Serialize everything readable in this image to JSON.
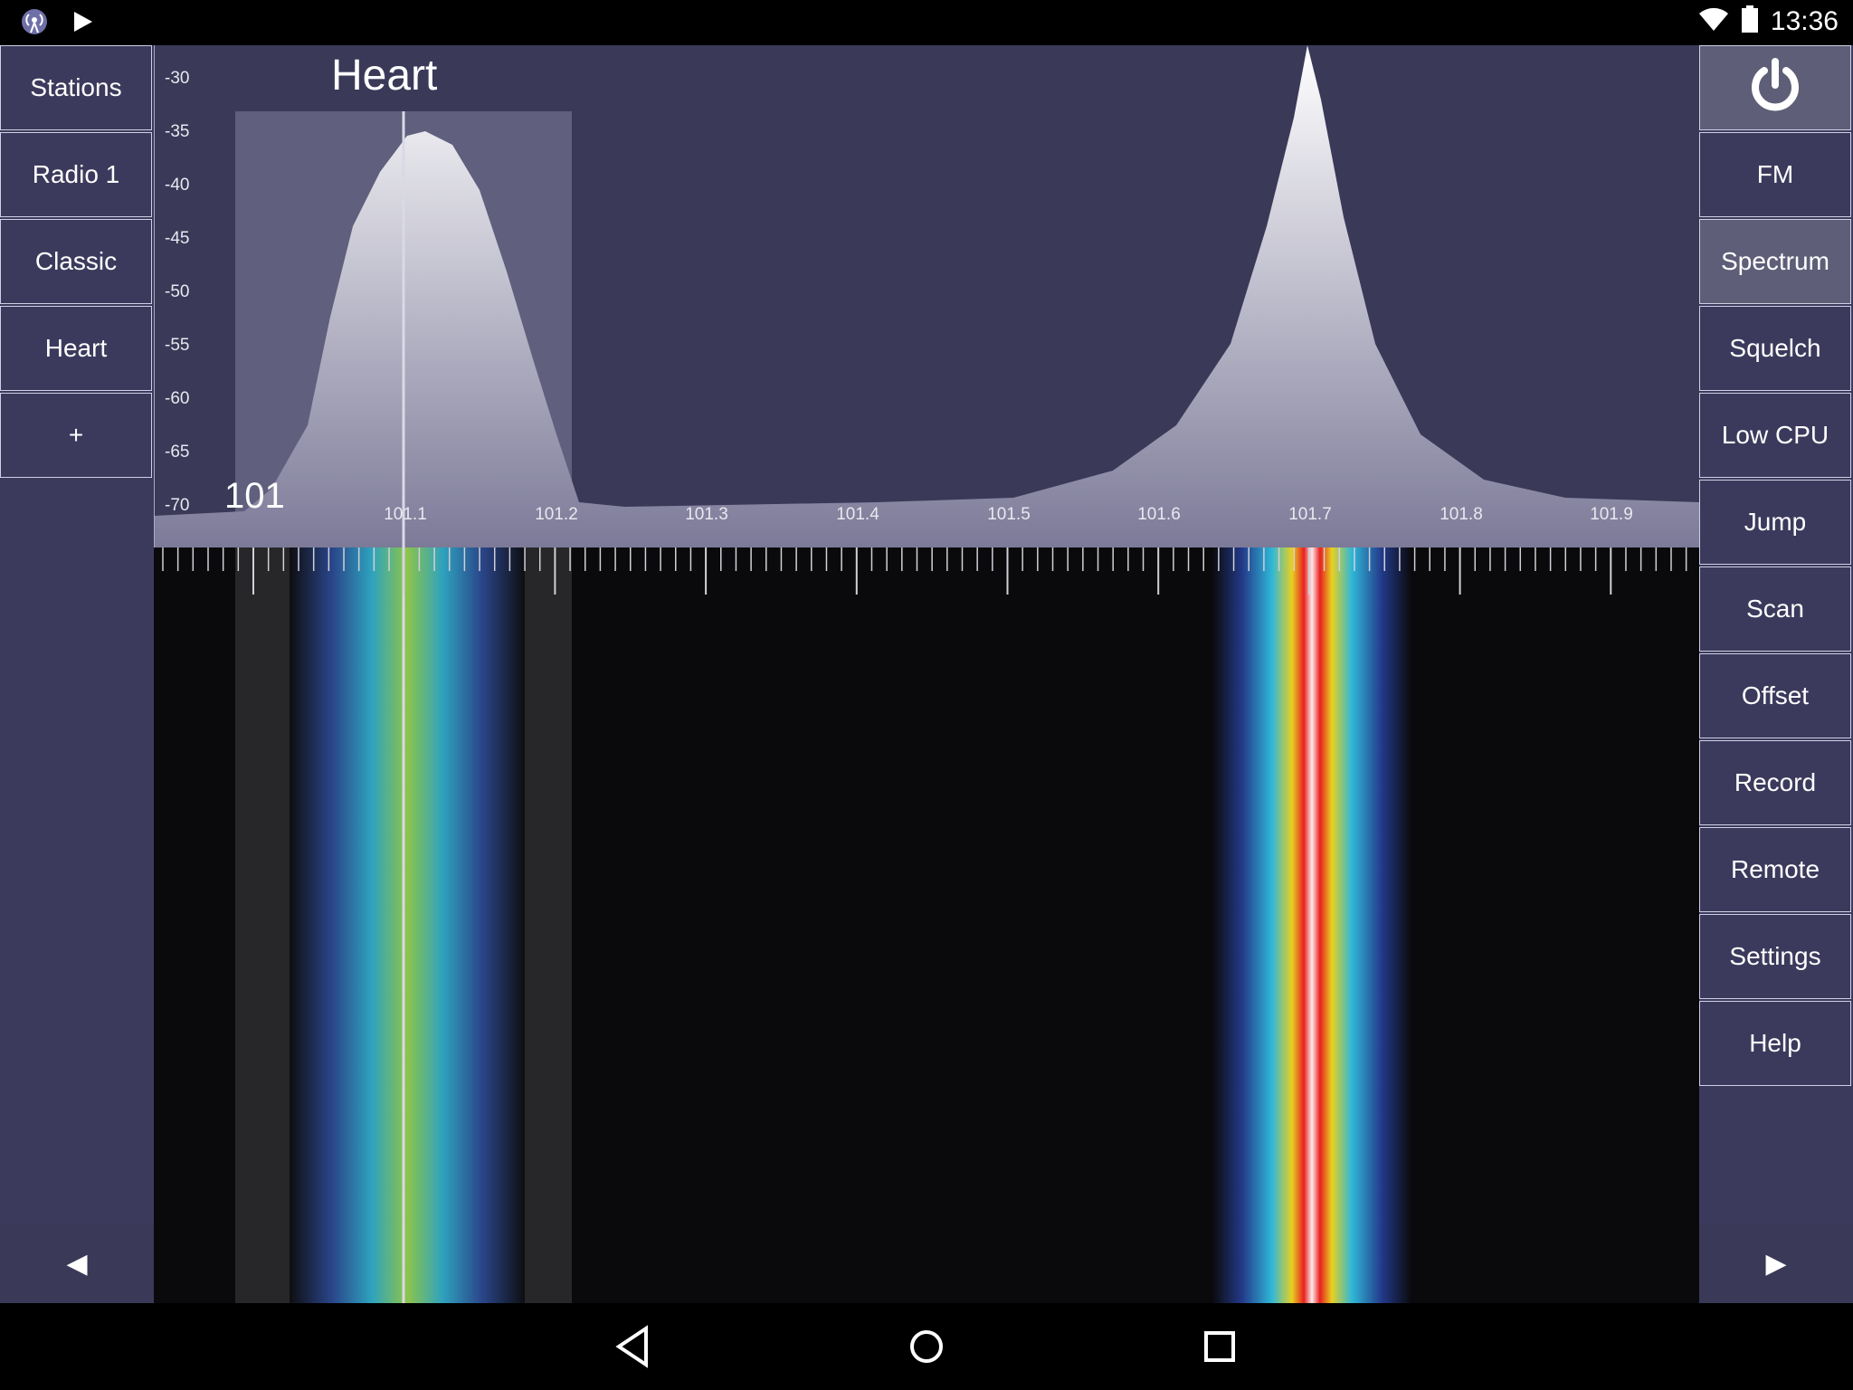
{
  "status_bar": {
    "time": "13:36",
    "left_icons": [
      "radio-app-icon",
      "play-icon"
    ],
    "right_icons": [
      "wifi-icon",
      "battery-icon"
    ]
  },
  "left_panel": {
    "items": [
      {
        "label": "Stations"
      },
      {
        "label": "Radio 1"
      },
      {
        "label": "Classic"
      },
      {
        "label": "Heart"
      },
      {
        "label": "+"
      }
    ],
    "prev_arrow": "◀"
  },
  "right_panel": {
    "power_icon": "power-icon",
    "items": [
      {
        "label": "FM"
      },
      {
        "label": "Spectrum",
        "active": true
      },
      {
        "label": "Squelch"
      },
      {
        "label": "Low CPU"
      },
      {
        "label": "Jump"
      },
      {
        "label": "Scan"
      },
      {
        "label": "Offset"
      },
      {
        "label": "Record"
      },
      {
        "label": "Remote"
      },
      {
        "label": "Settings"
      },
      {
        "label": "Help"
      }
    ],
    "next_arrow": "▶"
  },
  "spectrum": {
    "station_name": "Heart",
    "start_freq": "101",
    "db_labels": [
      "-30",
      "-35",
      "-40",
      "-45",
      "-50",
      "-55",
      "-60",
      "-65",
      "-70"
    ],
    "freq_labels": [
      "101.1",
      "101.2",
      "101.3",
      "101.4",
      "101.5",
      "101.6",
      "101.7",
      "101.8",
      "101.9"
    ]
  },
  "nav_bar": {
    "icons": [
      "back-icon",
      "home-icon",
      "recents-icon"
    ]
  },
  "colors": {
    "panel": "#3c3a5c",
    "panel_active": "#5e5e78",
    "spectrum_bg": "#3b3958",
    "border": "#cfd0e4"
  }
}
